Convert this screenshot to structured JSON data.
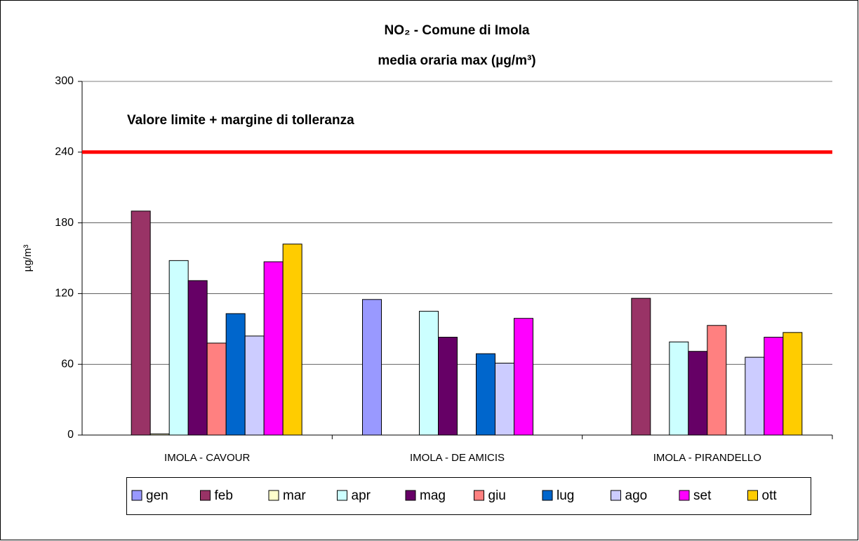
{
  "chart_data": {
    "type": "bar",
    "title": "NO₂ - Comune di Imola",
    "subtitle": "media oraria max  (µg/m³)",
    "y_label": "µg/m³",
    "categories": [
      "IMOLA - CAVOUR",
      "IMOLA - DE AMICIS",
      "IMOLA - PIRANDELLO"
    ],
    "series": [
      {
        "name": "gen",
        "color": "#9999ff",
        "values": [
          null,
          115,
          null
        ]
      },
      {
        "name": "feb",
        "color": "#993366",
        "values": [
          190,
          null,
          116
        ]
      },
      {
        "name": "mar",
        "color": "#ffffcc",
        "values": [
          1,
          null,
          null
        ]
      },
      {
        "name": "apr",
        "color": "#ccffff",
        "values": [
          148,
          105,
          79
        ]
      },
      {
        "name": "mag",
        "color": "#660066",
        "values": [
          131,
          83,
          71
        ]
      },
      {
        "name": "giu",
        "color": "#ff8080",
        "values": [
          78,
          null,
          93
        ]
      },
      {
        "name": "lug",
        "color": "#0066cc",
        "values": [
          103,
          69,
          null
        ]
      },
      {
        "name": "ago",
        "color": "#ccccff",
        "values": [
          84,
          61,
          66
        ]
      },
      {
        "name": "set",
        "color": "#ff00ff",
        "values": [
          147,
          99,
          83
        ]
      },
      {
        "name": "ott",
        "color": "#ffcc00",
        "values": [
          162,
          null,
          87
        ]
      }
    ],
    "limit_line": {
      "value": 240,
      "label": "Valore limite + margine di tolleranza",
      "color": "#ff0000"
    },
    "ylim": [
      0,
      300
    ],
    "yticks": [
      0,
      60,
      120,
      180,
      240,
      300
    ],
    "grid": true,
    "legend": "bottom"
  }
}
